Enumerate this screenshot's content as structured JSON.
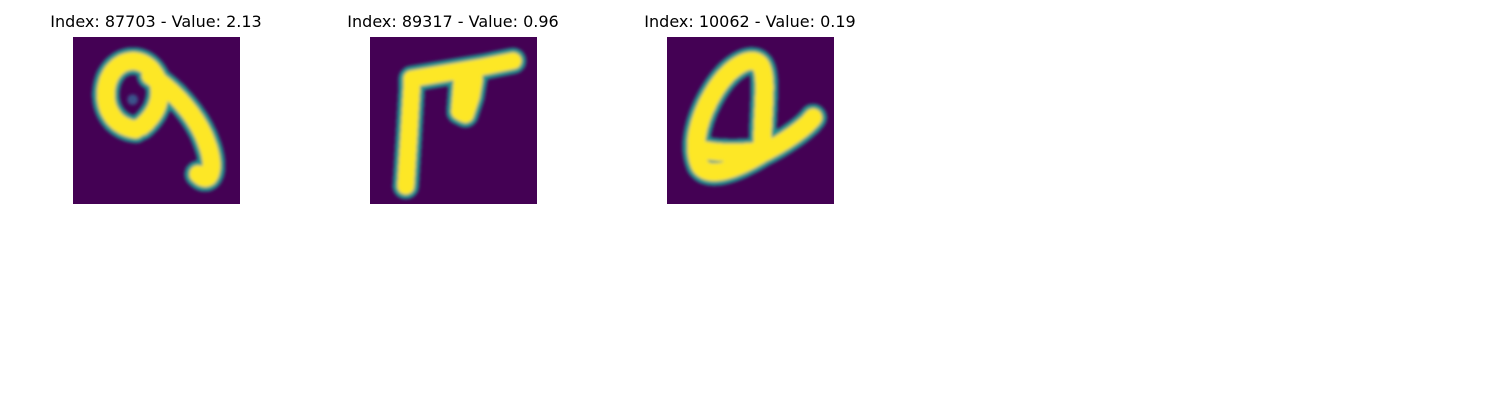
{
  "panels": [
    {
      "title": "Index: 87703 - Value: 2.13"
    },
    {
      "title": "Index: 89317 - Value: 0.96"
    },
    {
      "title": "Index: 10062 - Value: 0.19"
    }
  ],
  "colors": {
    "background": "#440154",
    "foreground": "#fde725",
    "mid": "#21918c"
  }
}
